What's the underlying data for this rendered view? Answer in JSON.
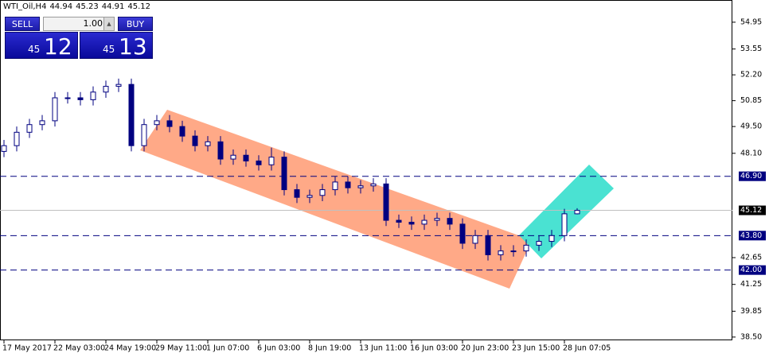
{
  "header": {
    "symbol": "WTI_Oil,H4",
    "ohlc": [
      44.94,
      45.23,
      44.91,
      45.12
    ]
  },
  "trade_panel": {
    "sell": "SELL",
    "buy": "BUY",
    "lot": "1.00",
    "sell_price": {
      "big": "45",
      "small": "12"
    },
    "buy_price": {
      "big": "45",
      "small": "13"
    }
  },
  "chart_data": {
    "type": "candlestick",
    "categories": [
      "17 May 2017",
      null,
      null,
      null,
      "22 May 03:00",
      null,
      null,
      null,
      "24 May 19:00",
      null,
      null,
      null,
      "29 May 11:00",
      null,
      null,
      null,
      "1 Jun 07:00",
      null,
      null,
      null,
      "6 Jun 03:00",
      null,
      null,
      null,
      "8 Jun 19:00",
      null,
      null,
      null,
      "13 Jun 11:00",
      null,
      null,
      null,
      "16 Jun 03:00",
      null,
      null,
      null,
      "20 Jun 23:00",
      null,
      null,
      null,
      "23 Jun 15:00",
      null,
      null,
      null,
      "28 Jun 07:05",
      null
    ],
    "open": [
      48.2,
      48.5,
      49.2,
      49.6,
      49.8,
      51.0,
      51.0,
      50.9,
      51.3,
      51.6,
      51.7,
      48.5,
      49.6,
      49.8,
      49.5,
      49.0,
      48.5,
      48.7,
      47.8,
      48.0,
      47.7,
      47.5,
      47.9,
      46.2,
      45.8,
      45.9,
      46.2,
      46.6,
      46.3,
      46.4,
      46.5,
      44.6,
      44.5,
      44.4,
      44.6,
      44.7,
      44.4,
      43.4,
      43.8,
      42.8,
      43.0,
      43.0,
      43.3,
      43.5,
      43.8,
      44.94
    ],
    "high": [
      48.8,
      49.5,
      49.9,
      50.1,
      51.3,
      51.3,
      51.3,
      51.6,
      51.9,
      52.0,
      52.0,
      49.9,
      50.1,
      50.1,
      49.8,
      49.3,
      49.0,
      49.0,
      48.3,
      48.3,
      48.0,
      48.4,
      48.2,
      46.5,
      46.2,
      46.5,
      46.9,
      46.9,
      46.7,
      46.8,
      46.8,
      44.9,
      44.8,
      44.9,
      45.0,
      45.0,
      44.7,
      44.1,
      44.1,
      43.3,
      43.3,
      43.6,
      43.8,
      44.1,
      45.2,
      45.23
    ],
    "low": [
      47.9,
      48.2,
      48.9,
      49.3,
      49.5,
      50.7,
      50.6,
      50.6,
      51.0,
      51.3,
      48.2,
      48.2,
      49.3,
      49.2,
      48.7,
      48.2,
      48.2,
      47.5,
      47.5,
      47.4,
      47.2,
      47.2,
      45.9,
      45.5,
      45.5,
      45.6,
      45.9,
      46.0,
      46.0,
      46.1,
      44.3,
      44.2,
      44.1,
      44.1,
      44.3,
      44.1,
      43.1,
      43.1,
      42.5,
      42.5,
      42.7,
      42.7,
      43.0,
      43.2,
      43.5,
      44.91
    ],
    "close": [
      48.5,
      49.2,
      49.6,
      49.8,
      51.0,
      51.0,
      50.9,
      51.3,
      51.6,
      51.7,
      48.5,
      49.6,
      49.8,
      49.5,
      49.0,
      48.5,
      48.7,
      47.8,
      48.0,
      47.7,
      47.5,
      47.9,
      46.2,
      45.8,
      45.9,
      46.2,
      46.6,
      46.3,
      46.4,
      46.5,
      44.6,
      44.5,
      44.4,
      44.6,
      44.7,
      44.4,
      43.4,
      43.8,
      42.8,
      43.0,
      43.0,
      43.3,
      43.5,
      43.8,
      44.94,
      45.12
    ],
    "color": "#000080",
    "ylim": [
      38.33,
      56.11
    ],
    "yticks": [
      54.95,
      53.55,
      {
        "value": 52.2,
        "label": "52.20"
      },
      50.85,
      {
        "value": 49.5,
        "label": "49.50"
      },
      {
        "value": 48.1,
        "label": "48.10"
      },
      42.65,
      41.25,
      39.85,
      {
        "value": 38.5,
        "label": "38.50"
      }
    ],
    "levels": [
      {
        "value": 46.9,
        "label": "46.90"
      },
      {
        "value": 43.8,
        "label": "43.80"
      },
      {
        "value": 42.0,
        "label": "42.00"
      }
    ],
    "last_price": 45.12
  }
}
